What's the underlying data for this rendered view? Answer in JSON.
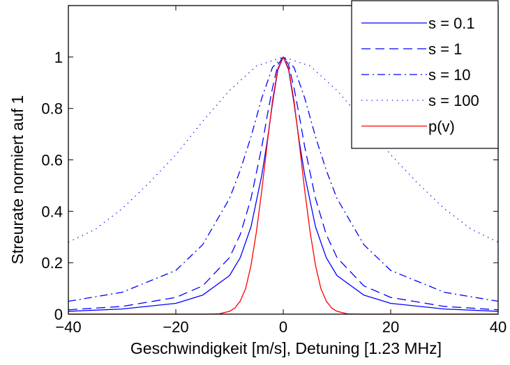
{
  "chart_data": {
    "type": "line",
    "title": "",
    "xlabel": "Geschwindigkeit [m/s], Detuning [1.23 MHz]",
    "ylabel": "Streurate normiert auf 1",
    "xlim": [
      -40,
      40
    ],
    "ylim": [
      0,
      1.2
    ],
    "xticks": [
      -40,
      -20,
      0,
      20,
      40
    ],
    "xtick_labels": [
      "−40",
      "−20",
      "0",
      "20",
      "40"
    ],
    "yticks": [
      0,
      0.2,
      0.4,
      0.6,
      0.8,
      1
    ],
    "ytick_labels": [
      "0",
      "0.2",
      "0.4",
      "0.6",
      "0.8",
      "1"
    ],
    "grid": false,
    "legend_position": "top-right",
    "series": [
      {
        "name": "s = 0.1",
        "color": "#0000ff",
        "style": "solid",
        "x": [
          -40,
          -30,
          -20,
          -15,
          -10,
          -8,
          -6,
          -4,
          -3,
          -2,
          -1,
          0,
          1,
          2,
          3,
          4,
          6,
          8,
          10,
          15,
          20,
          30,
          40
        ],
        "y": [
          0.011,
          0.02,
          0.042,
          0.074,
          0.15,
          0.22,
          0.34,
          0.54,
          0.67,
          0.82,
          0.95,
          1.0,
          0.95,
          0.82,
          0.67,
          0.54,
          0.34,
          0.22,
          0.15,
          0.074,
          0.042,
          0.02,
          0.011
        ]
      },
      {
        "name": "s = 1",
        "color": "#0000ff",
        "style": "dashed",
        "x": [
          -40,
          -30,
          -20,
          -15,
          -10,
          -8,
          -6,
          -4,
          -3,
          -2,
          -1,
          0,
          1,
          2,
          3,
          4,
          6,
          8,
          10,
          15,
          20,
          30,
          40
        ],
        "y": [
          0.017,
          0.03,
          0.065,
          0.11,
          0.22,
          0.31,
          0.45,
          0.65,
          0.77,
          0.88,
          0.97,
          1.0,
          0.97,
          0.88,
          0.77,
          0.65,
          0.45,
          0.31,
          0.22,
          0.11,
          0.065,
          0.03,
          0.017
        ]
      },
      {
        "name": "s = 10",
        "color": "#0000ff",
        "style": "dashdot",
        "x": [
          -40,
          -30,
          -20,
          -15,
          -10,
          -8,
          -6,
          -4,
          -2,
          0,
          2,
          4,
          6,
          8,
          10,
          15,
          20,
          30,
          40
        ],
        "y": [
          0.05,
          0.085,
          0.17,
          0.27,
          0.45,
          0.56,
          0.69,
          0.84,
          0.96,
          1.0,
          0.96,
          0.84,
          0.69,
          0.56,
          0.45,
          0.27,
          0.17,
          0.085,
          0.05
        ]
      },
      {
        "name": "s = 100",
        "color": "#0000ff",
        "style": "dotted",
        "x": [
          -40,
          -35,
          -30,
          -25,
          -20,
          -15,
          -10,
          -5,
          0,
          5,
          10,
          15,
          20,
          25,
          30,
          35,
          40
        ],
        "y": [
          0.28,
          0.33,
          0.41,
          0.51,
          0.62,
          0.75,
          0.87,
          0.965,
          1.0,
          0.965,
          0.87,
          0.75,
          0.62,
          0.51,
          0.41,
          0.33,
          0.28
        ]
      },
      {
        "name": "p(v)",
        "color": "#ff0000",
        "style": "solid",
        "x": [
          -40,
          -14,
          -12,
          -10,
          -9,
          -8,
          -7,
          -6,
          -5,
          -4,
          -3,
          -2,
          -1,
          0,
          1,
          2,
          3,
          4,
          5,
          6,
          7,
          8,
          9,
          10,
          12,
          14,
          40
        ],
        "y": [
          0,
          0,
          0.001,
          0.011,
          0.024,
          0.051,
          0.1,
          0.19,
          0.32,
          0.48,
          0.66,
          0.83,
          0.955,
          1.0,
          0.955,
          0.83,
          0.66,
          0.48,
          0.32,
          0.19,
          0.1,
          0.051,
          0.024,
          0.011,
          0.001,
          0,
          0
        ]
      }
    ]
  }
}
